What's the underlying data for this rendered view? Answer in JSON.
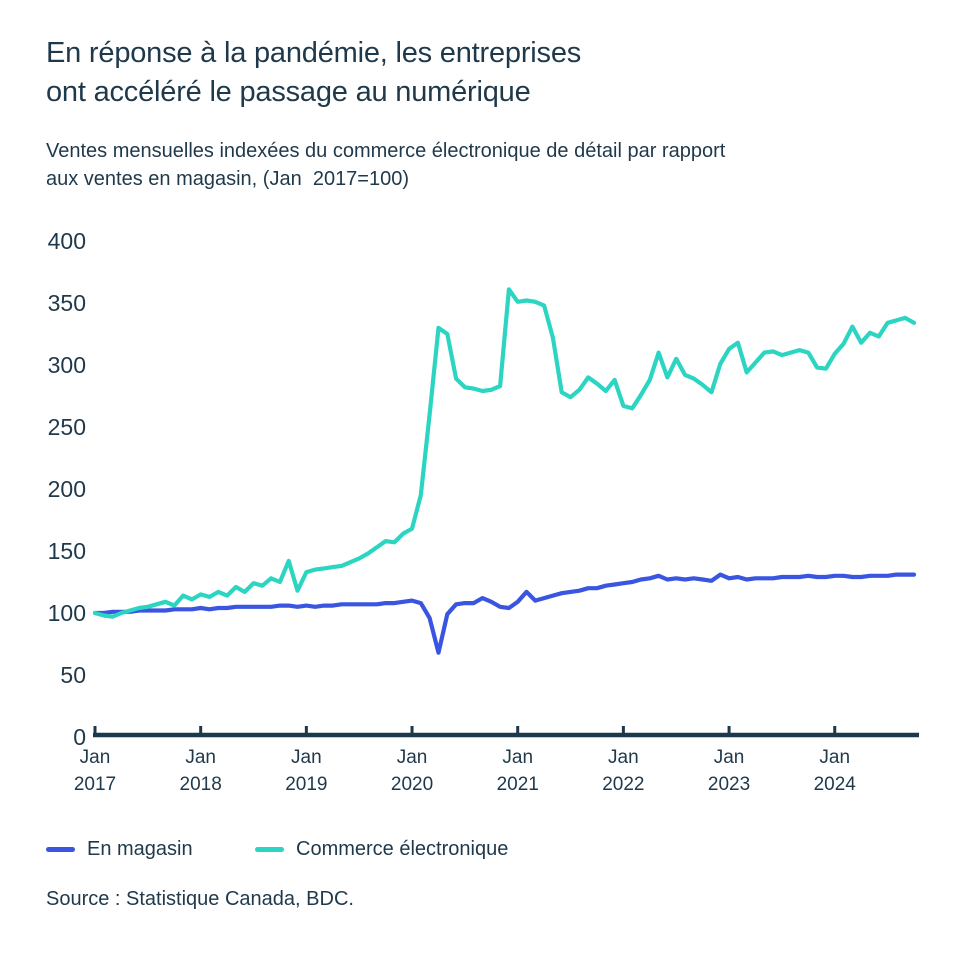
{
  "header": {
    "title": "En réponse à la pandémie, les entreprises\nont accéléré le passage au numérique",
    "subtitle": "Ventes mensuelles indexées du commerce électronique de détail par rapport\naux ventes en magasin, (Jan  2017=100)"
  },
  "source": "Source : Statistique Canada, BDC.",
  "colors": {
    "text": "#1F394B",
    "axis": "#1C394B",
    "background": "#FFFFFF",
    "in_store": "#3A55E0",
    "ecommerce": "#2BD5C2"
  },
  "chart_data": {
    "type": "line",
    "title": "En réponse à la pandémie, les entreprises ont accéléré le passage au numérique",
    "subtitle": "Ventes mensuelles indexées du commerce électronique de détail par rapport aux ventes en magasin, (Jan 2017=100)",
    "xlabel": "",
    "ylabel": "",
    "ylim": [
      0,
      400
    ],
    "grid": false,
    "legend_position": "bottom",
    "x_range": {
      "start": "Jan 2017",
      "end": "Oct 2024",
      "interval": "monthly",
      "points": 94
    },
    "y_ticks": [
      400,
      350,
      300,
      250,
      200,
      150,
      100,
      50,
      0
    ],
    "x_tick_labels": [
      {
        "line1": "Jan",
        "line2": "2017"
      },
      {
        "line1": "Jan",
        "line2": "2018"
      },
      {
        "line1": "Jan",
        "line2": "2019"
      },
      {
        "line1": "Jan",
        "line2": "2020"
      },
      {
        "line1": "Jan",
        "line2": "2021"
      },
      {
        "line1": "Jan",
        "line2": "2022"
      },
      {
        "line1": "Jan",
        "line2": "2023"
      },
      {
        "line1": "Jan",
        "line2": "2024"
      }
    ],
    "series": [
      {
        "id": "en-magasin",
        "name": "En magasin",
        "color": "#3A55E0",
        "values": [
          100,
          100,
          101,
          101,
          101,
          102,
          102,
          102,
          102,
          103,
          103,
          103,
          104,
          103,
          104,
          104,
          105,
          105,
          105,
          105,
          105,
          106,
          106,
          105,
          106,
          105,
          106,
          106,
          107,
          107,
          107,
          107,
          107,
          108,
          108,
          109,
          110,
          108,
          96,
          68,
          99,
          107,
          108,
          108,
          112,
          109,
          105,
          104,
          109,
          117,
          110,
          112,
          114,
          116,
          117,
          118,
          120,
          120,
          122,
          123,
          124,
          125,
          127,
          128,
          130,
          127,
          128,
          127,
          128,
          127,
          126,
          131,
          128,
          129,
          127,
          128,
          128,
          128,
          129,
          129,
          129,
          130,
          129,
          129,
          130,
          130,
          129,
          129,
          130,
          130,
          130,
          131,
          131,
          131
        ]
      },
      {
        "id": "commerce-electronique",
        "name": "Commerce électronique",
        "color": "#2BD5C2",
        "values": [
          100,
          98,
          97,
          100,
          102,
          104,
          105,
          107,
          109,
          106,
          114,
          111,
          115,
          113,
          117,
          114,
          121,
          117,
          124,
          122,
          128,
          125,
          142,
          118,
          133,
          135,
          136,
          137,
          138,
          141,
          144,
          148,
          153,
          158,
          157,
          164,
          168,
          195,
          260,
          330,
          325,
          289,
          282,
          281,
          279,
          280,
          283,
          361,
          351,
          352,
          351,
          348,
          322,
          278,
          274,
          280,
          290,
          285,
          279,
          288,
          267,
          265,
          276,
          288,
          310,
          290,
          305,
          292,
          289,
          284,
          278,
          301,
          313,
          318,
          294,
          302,
          310,
          311,
          308,
          310,
          312,
          310,
          298,
          297,
          309,
          317,
          331,
          318,
          326,
          323,
          334,
          336,
          338,
          334
        ]
      }
    ]
  }
}
